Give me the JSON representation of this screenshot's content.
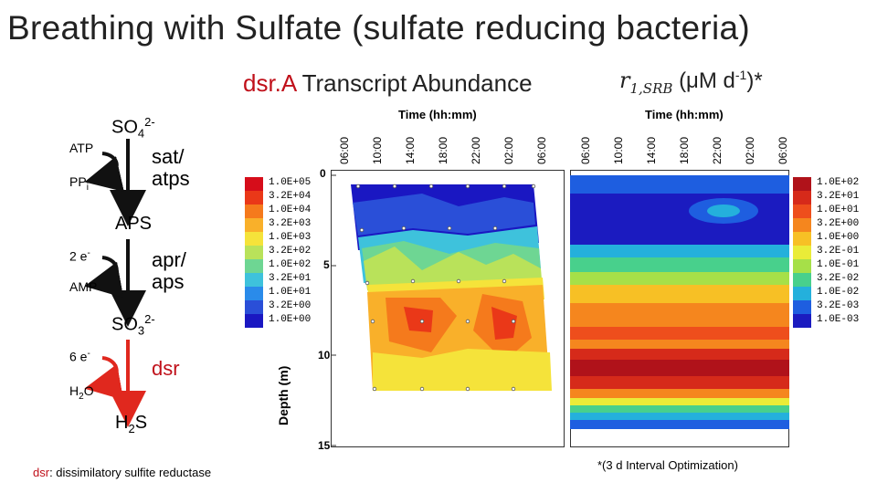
{
  "title": "Breathing with Sulfate (sulfate reducing bacteria)",
  "subtitle": {
    "gene": "dsr.A",
    "rest": " Transcript Abundance"
  },
  "rate_label": {
    "r": "r",
    "sub": "1,SRB",
    "units_pre": "(μM d",
    "units_sup": "-1",
    "units_post": ")*"
  },
  "pathway": {
    "so4": "SO",
    "so4_sub": "4",
    "so4_sup": "2-",
    "atp": "ATP",
    "ppi": "PP",
    "ppi_sub": "i",
    "sat": "sat/",
    "atps": "atps",
    "aps": "APS",
    "two_e": "2 e",
    "two_e_sup": "-",
    "amp": "AMP",
    "apr": "apr/",
    "aps_enz": "aps",
    "so3": "SO",
    "so3_sub": "3",
    "so3_sup": "2-",
    "six_e": "6 e",
    "six_e_sup": "-",
    "h2o": "H",
    "h2o_sub": "2",
    "h2o_end": "O",
    "dsr": "dsr",
    "h2s": "H",
    "h2s_sub": "2",
    "h2s_end": "S"
  },
  "plot": {
    "time_header": "Time (hh:mm)",
    "time_ticks": [
      "06:00",
      "10:00",
      "14:00",
      "18:00",
      "22:00",
      "02:00",
      "06:00"
    ],
    "depth_label": "Depth (m)",
    "depth_ticks": [
      "0",
      "5",
      "10",
      "15"
    ]
  },
  "legend_left": {
    "labels": [
      "1.0E+05",
      "3.2E+04",
      "1.0E+04",
      "3.2E+03",
      "1.0E+03",
      "3.2E+02",
      "1.0E+02",
      "3.2E+01",
      "1.0E+01",
      "3.2E+00",
      "1.0E+00"
    ],
    "colors": [
      "#d60d1a",
      "#ea3818",
      "#f57a1c",
      "#f9b02a",
      "#f5e33a",
      "#b9e25a",
      "#6ed693",
      "#3ec2dc",
      "#2a8bea",
      "#2a4fd8",
      "#1a17c2"
    ]
  },
  "legend_right": {
    "labels": [
      "1.0E+02",
      "3.2E+01",
      "1.0E+01",
      "3.2E+00",
      "1.0E+00",
      "3.2E-01",
      "1.0E-01",
      "3.2E-02",
      "1.0E-02",
      "3.2E-03",
      "1.0E-03"
    ],
    "colors": [
      "#b0121a",
      "#d62a1a",
      "#ee4e1c",
      "#f5861e",
      "#f7c025",
      "#eaec38",
      "#a6e048",
      "#48d08c",
      "#24b0dc",
      "#1e5ee0",
      "#1b1bc0"
    ]
  },
  "footnote_left": {
    "dsr": "dsr",
    "rest": ": dissimilatory sulfite reductase"
  },
  "footnote_right": "*(3 d Interval Optimization)",
  "colors": {
    "accent_red": "#c0101a"
  }
}
